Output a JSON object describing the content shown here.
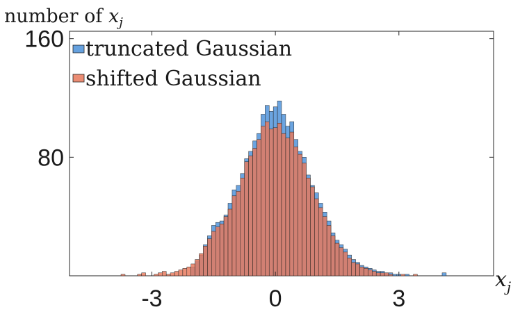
{
  "chart_data": {
    "type": "bar",
    "ylabel_prefix": "number of ",
    "ylabel_var": "x",
    "ylabel_sub": "j",
    "xlabel_var": "x",
    "xlabel_sub": "j",
    "xlim": [
      -5,
      5.3
    ],
    "ylim": [
      0,
      165
    ],
    "xticks": [
      -3,
      0,
      3
    ],
    "xtick_labels": [
      "-3",
      "0",
      "3"
    ],
    "yticks": [
      80,
      160
    ],
    "ytick_labels": [
      "80",
      "160"
    ],
    "bin_width": 0.1,
    "legend_position": "top-left",
    "series": [
      {
        "name": "truncated Gaussian",
        "color": "#4a90d9",
        "values": [
          {
            "x": -2.0,
            "y": 6
          },
          {
            "x": -1.9,
            "y": 10
          },
          {
            "x": -1.8,
            "y": 14
          },
          {
            "x": -1.7,
            "y": 21
          },
          {
            "x": -1.6,
            "y": 27
          },
          {
            "x": -1.5,
            "y": 34
          },
          {
            "x": -1.4,
            "y": 36
          },
          {
            "x": -1.3,
            "y": 37
          },
          {
            "x": -1.2,
            "y": 41
          },
          {
            "x": -1.1,
            "y": 49
          },
          {
            "x": -1.0,
            "y": 58
          },
          {
            "x": -0.9,
            "y": 61
          },
          {
            "x": -0.8,
            "y": 69
          },
          {
            "x": -0.7,
            "y": 79
          },
          {
            "x": -0.6,
            "y": 84
          },
          {
            "x": -0.5,
            "y": 91
          },
          {
            "x": -0.4,
            "y": 96
          },
          {
            "x": -0.3,
            "y": 109
          },
          {
            "x": -0.2,
            "y": 115
          },
          {
            "x": -0.1,
            "y": 111
          },
          {
            "x": 0.0,
            "y": 114
          },
          {
            "x": 0.1,
            "y": 118
          },
          {
            "x": 0.2,
            "y": 109
          },
          {
            "x": 0.3,
            "y": 101
          },
          {
            "x": 0.4,
            "y": 104
          },
          {
            "x": 0.5,
            "y": 92
          },
          {
            "x": 0.6,
            "y": 84
          },
          {
            "x": 0.7,
            "y": 80
          },
          {
            "x": 0.8,
            "y": 68
          },
          {
            "x": 0.9,
            "y": 61
          },
          {
            "x": 1.0,
            "y": 56
          },
          {
            "x": 1.1,
            "y": 49
          },
          {
            "x": 1.2,
            "y": 43
          },
          {
            "x": 1.3,
            "y": 37
          },
          {
            "x": 1.4,
            "y": 29
          },
          {
            "x": 1.5,
            "y": 24
          },
          {
            "x": 1.6,
            "y": 21
          },
          {
            "x": 1.7,
            "y": 18
          },
          {
            "x": 1.8,
            "y": 14
          },
          {
            "x": 1.9,
            "y": 11
          },
          {
            "x": 2.0,
            "y": 9
          },
          {
            "x": 2.1,
            "y": 7
          },
          {
            "x": 2.2,
            "y": 6
          },
          {
            "x": 2.3,
            "y": 5
          },
          {
            "x": 2.4,
            "y": 4
          },
          {
            "x": 2.5,
            "y": 3
          },
          {
            "x": 2.6,
            "y": 3
          },
          {
            "x": 2.7,
            "y": 2
          },
          {
            "x": 2.8,
            "y": 2
          },
          {
            "x": 2.9,
            "y": 1
          },
          {
            "x": 3.0,
            "y": 1
          },
          {
            "x": 3.2,
            "y": 1
          },
          {
            "x": 4.1,
            "y": 2
          }
        ]
      },
      {
        "name": "shifted Gaussian",
        "color": "#e8785a",
        "values": [
          {
            "x": -3.7,
            "y": 1
          },
          {
            "x": -3.3,
            "y": 1
          },
          {
            "x": -3.2,
            "y": 2
          },
          {
            "x": -2.9,
            "y": 1
          },
          {
            "x": -2.8,
            "y": 2
          },
          {
            "x": -2.7,
            "y": 3
          },
          {
            "x": -2.6,
            "y": 1
          },
          {
            "x": -2.5,
            "y": 2
          },
          {
            "x": -2.4,
            "y": 3
          },
          {
            "x": -2.3,
            "y": 4
          },
          {
            "x": -2.2,
            "y": 5
          },
          {
            "x": -2.1,
            "y": 6
          },
          {
            "x": -2.0,
            "y": 8
          },
          {
            "x": -1.9,
            "y": 11
          },
          {
            "x": -1.8,
            "y": 15
          },
          {
            "x": -1.7,
            "y": 20
          },
          {
            "x": -1.6,
            "y": 25
          },
          {
            "x": -1.5,
            "y": 30
          },
          {
            "x": -1.4,
            "y": 33
          },
          {
            "x": -1.3,
            "y": 35
          },
          {
            "x": -1.2,
            "y": 40
          },
          {
            "x": -1.1,
            "y": 45
          },
          {
            "x": -1.0,
            "y": 54
          },
          {
            "x": -0.9,
            "y": 57
          },
          {
            "x": -0.8,
            "y": 66
          },
          {
            "x": -0.7,
            "y": 77
          },
          {
            "x": -0.6,
            "y": 81
          },
          {
            "x": -0.5,
            "y": 86
          },
          {
            "x": -0.4,
            "y": 92
          },
          {
            "x": -0.3,
            "y": 101
          },
          {
            "x": -0.2,
            "y": 104
          },
          {
            "x": -0.1,
            "y": 99
          },
          {
            "x": 0.0,
            "y": 100
          },
          {
            "x": 0.1,
            "y": 103
          },
          {
            "x": 0.2,
            "y": 96
          },
          {
            "x": 0.3,
            "y": 93
          },
          {
            "x": 0.4,
            "y": 97
          },
          {
            "x": 0.5,
            "y": 87
          },
          {
            "x": 0.6,
            "y": 82
          },
          {
            "x": 0.7,
            "y": 76
          },
          {
            "x": 0.8,
            "y": 66
          },
          {
            "x": 0.9,
            "y": 60
          },
          {
            "x": 1.0,
            "y": 52
          },
          {
            "x": 1.1,
            "y": 46
          },
          {
            "x": 1.2,
            "y": 40
          },
          {
            "x": 1.3,
            "y": 34
          },
          {
            "x": 1.4,
            "y": 27
          },
          {
            "x": 1.5,
            "y": 22
          },
          {
            "x": 1.6,
            "y": 19
          },
          {
            "x": 1.7,
            "y": 16
          },
          {
            "x": 1.8,
            "y": 12
          },
          {
            "x": 1.9,
            "y": 9
          },
          {
            "x": 2.0,
            "y": 8
          },
          {
            "x": 2.1,
            "y": 6
          },
          {
            "x": 2.2,
            "y": 5
          },
          {
            "x": 2.3,
            "y": 4
          },
          {
            "x": 2.4,
            "y": 3
          },
          {
            "x": 2.5,
            "y": 2
          },
          {
            "x": 2.6,
            "y": 2
          },
          {
            "x": 2.7,
            "y": 2
          },
          {
            "x": 2.8,
            "y": 1
          },
          {
            "x": 3.1,
            "y": 1
          },
          {
            "x": 3.4,
            "y": 1
          }
        ]
      }
    ]
  }
}
